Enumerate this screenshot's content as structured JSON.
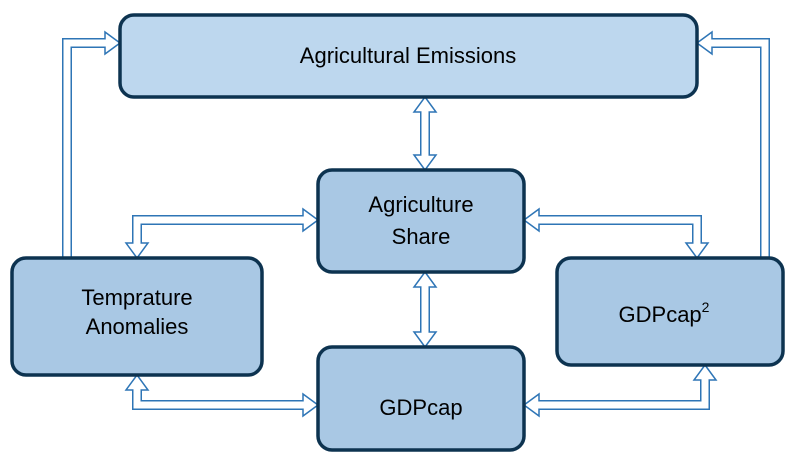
{
  "nodes": [
    {
      "label": "Agricultural Emissions"
    },
    {
      "label": [
        "Agriculture",
        "Share"
      ]
    },
    {
      "label": [
        "Temprature",
        "Anomalies"
      ]
    },
    {
      "label": "GDPcap",
      "superscript": "2"
    },
    {
      "label": "GDPcap"
    }
  ]
}
